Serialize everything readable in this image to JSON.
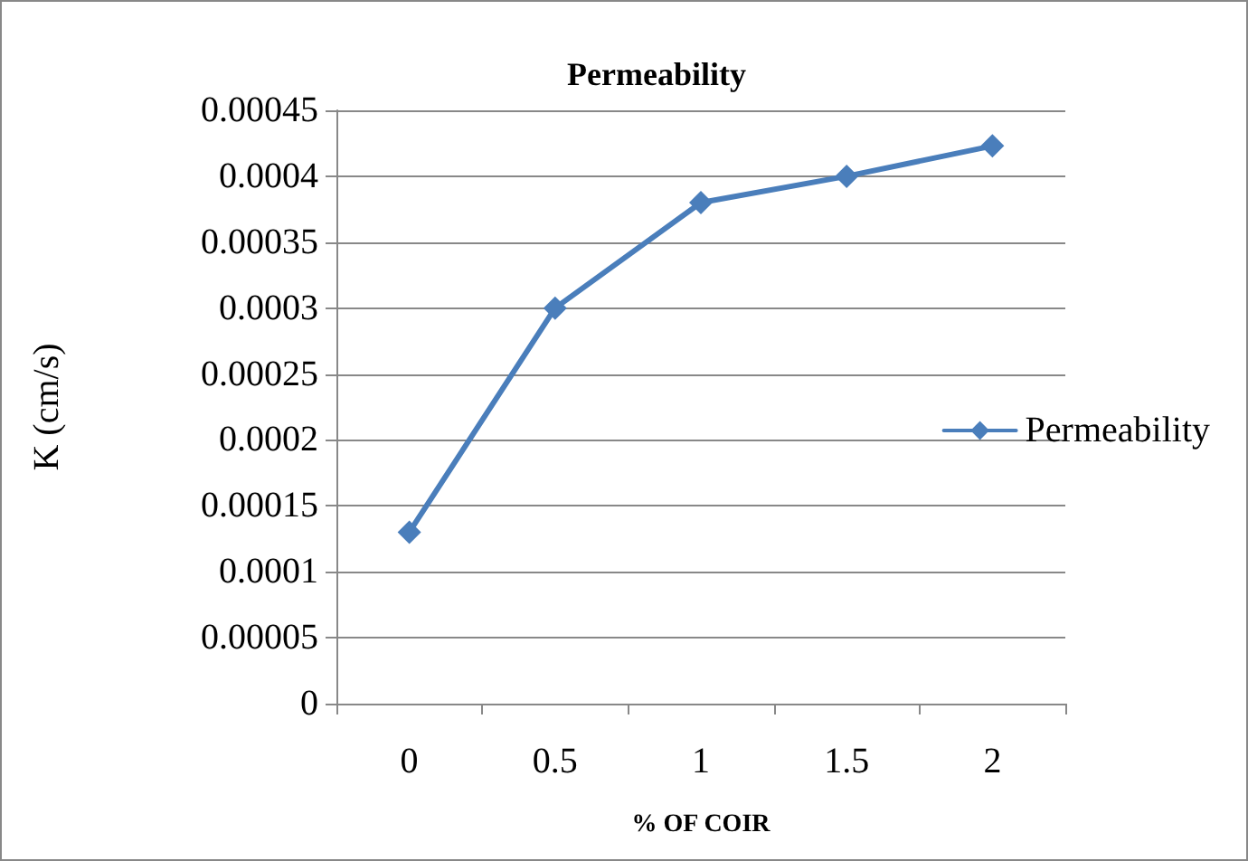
{
  "chart_data": {
    "type": "line",
    "title": "Permeability",
    "xlabel": "% OF COIR",
    "ylabel": "K (cm/s)",
    "categories": [
      "0",
      "0.5",
      "1",
      "1.5",
      "2"
    ],
    "series": [
      {
        "name": "Permeability",
        "color": "#4a7ebb",
        "values": [
          0.00013,
          0.0003,
          0.00038,
          0.0004,
          0.000423
        ]
      }
    ],
    "ylim": [
      0,
      0.00045
    ],
    "yticks": [
      0,
      {
        "value": 5e-05,
        "label": "0.00005"
      },
      0.0001,
      0.00015,
      0.0002,
      0.00025,
      0.0003,
      0.00035,
      0.0004,
      0.00045
    ],
    "grid": "y",
    "legend": "right",
    "marker": "diamond",
    "line_style": "solid"
  }
}
